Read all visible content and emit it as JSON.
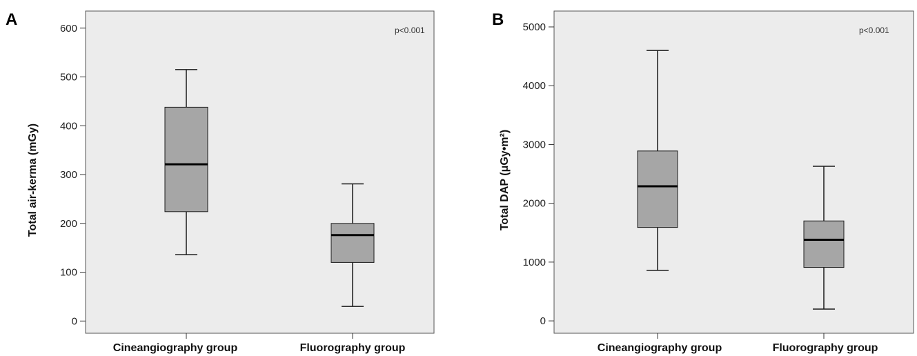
{
  "style": {
    "plot_background": "#ececec",
    "box_fill": "#a6a6a6",
    "line_color": "#1a1a1a"
  },
  "chart_data": [
    {
      "type": "box",
      "panel_label": "A",
      "ylabel": "Total air-kerma (mGy)",
      "ylim": [
        -25,
        635
      ],
      "yticks": [
        0,
        100,
        200,
        300,
        400,
        500,
        600
      ],
      "categories": [
        "Cineangiography group",
        "Fluorography group"
      ],
      "boxes": [
        {
          "whisker_low": 136,
          "q1": 224,
          "median": 321,
          "q3": 438,
          "whisker_high": 515
        },
        {
          "whisker_low": 30,
          "q1": 120,
          "median": 176,
          "q3": 200,
          "whisker_high": 281
        }
      ],
      "annotation": "p<0.001",
      "grid": false
    },
    {
      "type": "box",
      "panel_label": "B",
      "ylabel": "Total DAP (μGy•m²)",
      "ylim": [
        -210,
        5270
      ],
      "yticks": [
        0,
        1000,
        2000,
        3000,
        4000,
        5000
      ],
      "categories": [
        "Cineangiography group",
        "Fluorography group"
      ],
      "boxes": [
        {
          "whisker_low": 860,
          "q1": 1590,
          "median": 2290,
          "q3": 2890,
          "whisker_high": 4600
        },
        {
          "whisker_low": 200,
          "q1": 910,
          "median": 1380,
          "q3": 1700,
          "whisker_high": 2630
        }
      ],
      "annotation": "p<0.001",
      "grid": false
    }
  ]
}
